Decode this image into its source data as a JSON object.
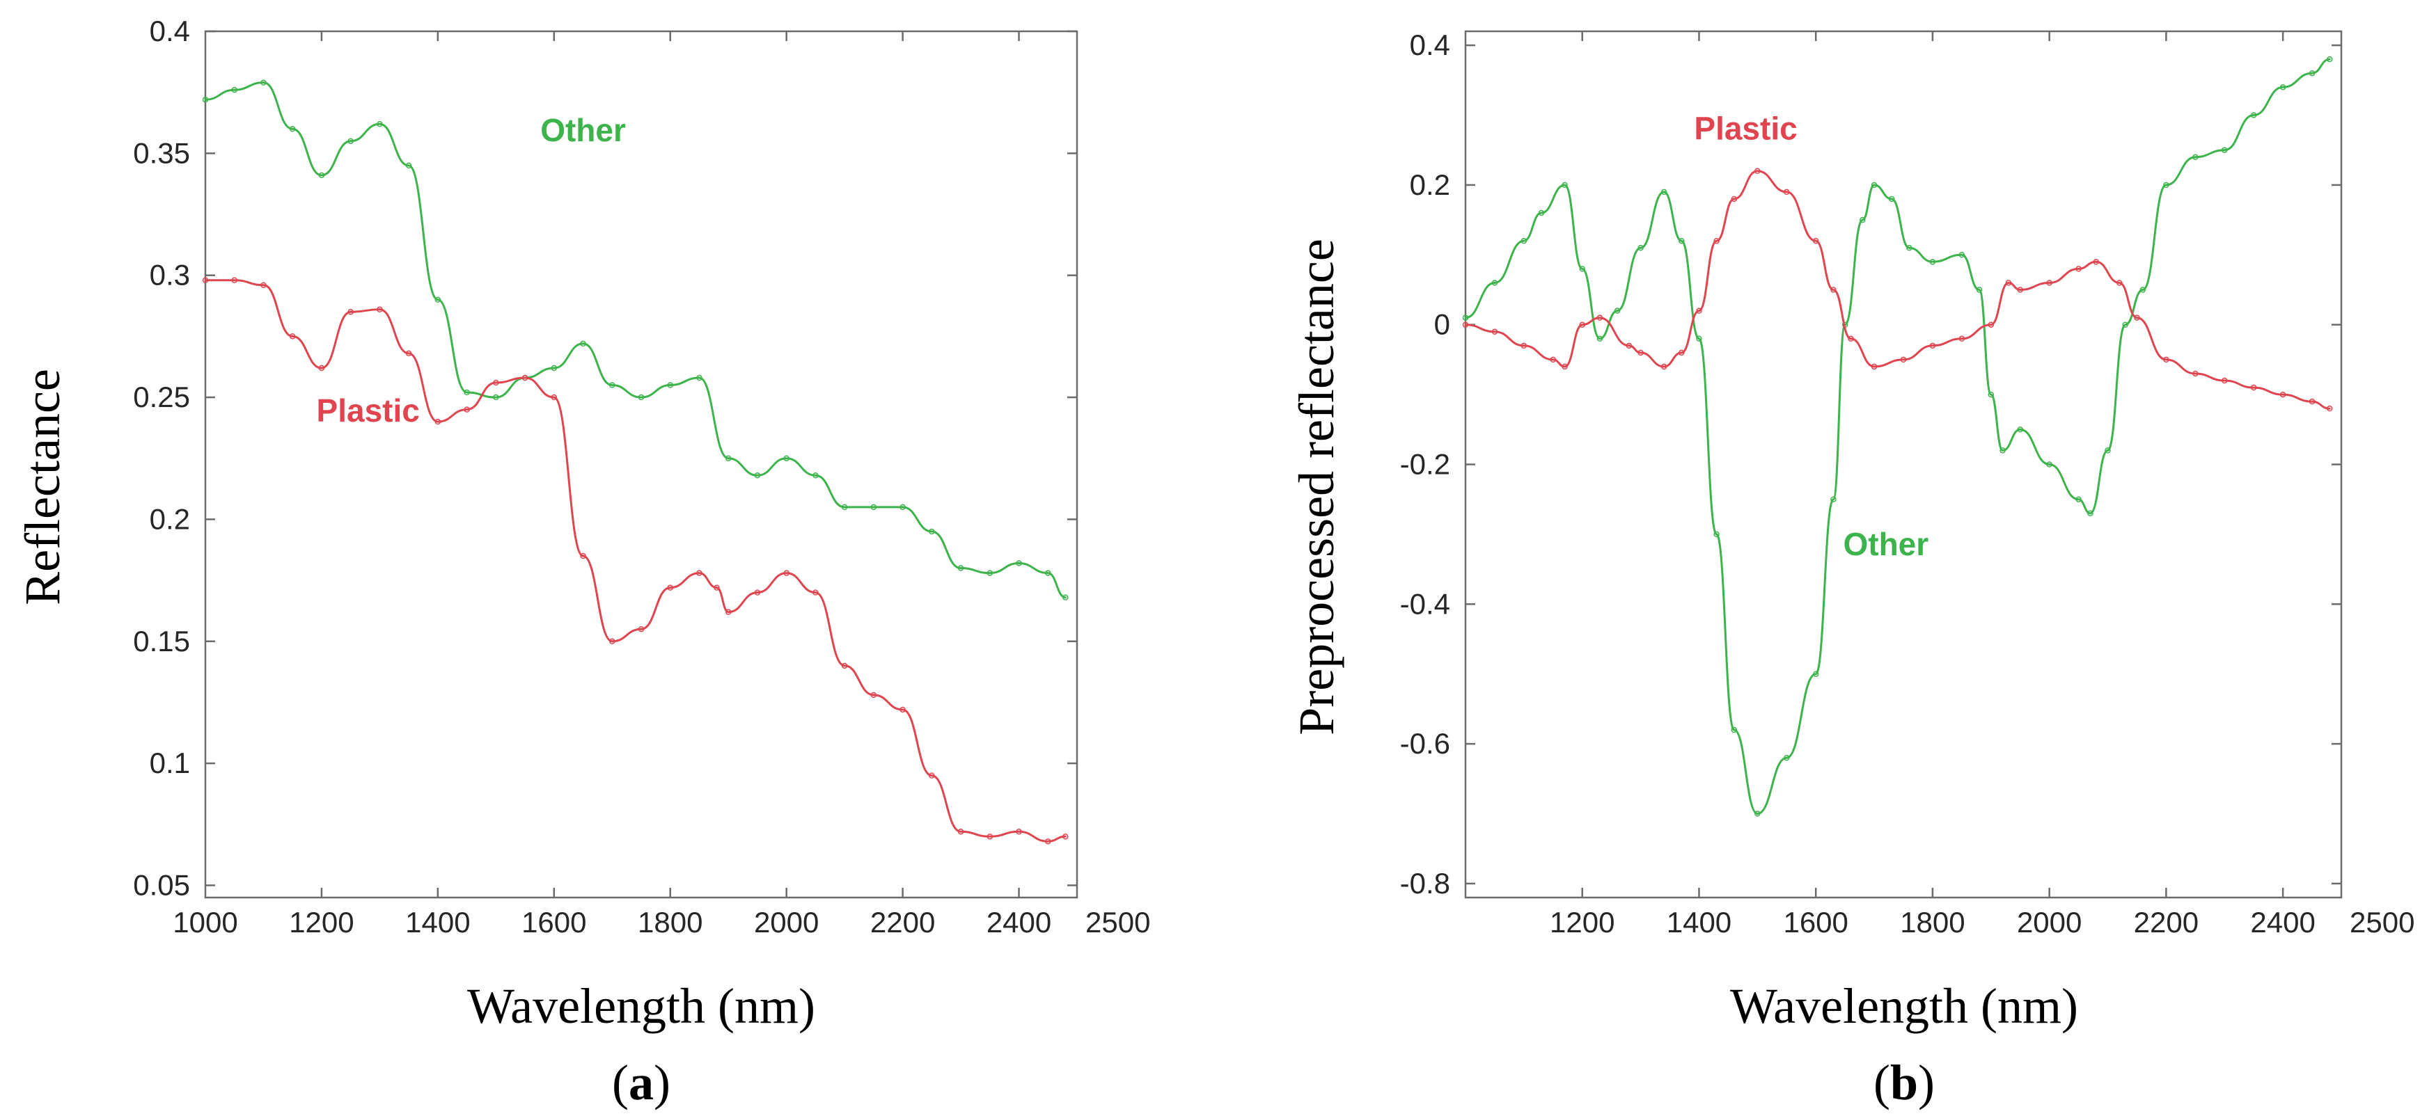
{
  "chart_data": [
    {
      "panel": "(a)",
      "panel_letter": "a",
      "type": "line",
      "title": "",
      "xlabel": "Wavelength (nm)",
      "ylabel": "Reflectance",
      "xlim": [
        1000,
        2500
      ],
      "ylim": [
        0.045,
        0.4
      ],
      "xticks": [
        1000,
        1200,
        1400,
        1600,
        1800,
        2000,
        2200,
        2400,
        2500
      ],
      "xtick_labels": [
        "1000",
        "1200",
        "1400",
        "1600",
        "1800",
        "2000",
        "2200",
        "2400",
        "2500"
      ],
      "yticks": [
        0.05,
        0.1,
        0.15,
        0.2,
        0.25,
        0.3,
        0.35,
        0.4
      ],
      "ytick_labels": [
        "0.05",
        "0.1",
        "0.15",
        "0.2",
        "0.25",
        "0.3",
        "0.35",
        "0.4"
      ],
      "series": [
        {
          "name": "Other",
          "label": "Other",
          "color": "#3cb44b",
          "label_pos": [
            1650,
            0.355
          ],
          "x": [
            1000,
            1050,
            1100,
            1150,
            1200,
            1250,
            1300,
            1350,
            1400,
            1450,
            1500,
            1550,
            1600,
            1650,
            1700,
            1750,
            1800,
            1850,
            1900,
            1950,
            2000,
            2050,
            2100,
            2150,
            2200,
            2250,
            2300,
            2350,
            2400,
            2450,
            2480
          ],
          "y": [
            0.372,
            0.376,
            0.379,
            0.36,
            0.341,
            0.355,
            0.362,
            0.345,
            0.29,
            0.252,
            0.25,
            0.258,
            0.262,
            0.272,
            0.255,
            0.25,
            0.255,
            0.258,
            0.225,
            0.218,
            0.225,
            0.218,
            0.205,
            0.205,
            0.205,
            0.195,
            0.18,
            0.178,
            0.182,
            0.178,
            0.168
          ]
        },
        {
          "name": "Plastic",
          "label": "Plastic",
          "color": "#e0454f",
          "label_pos": [
            1280,
            0.24
          ],
          "x": [
            1000,
            1050,
            1100,
            1150,
            1200,
            1250,
            1300,
            1350,
            1400,
            1450,
            1500,
            1550,
            1600,
            1650,
            1700,
            1750,
            1800,
            1850,
            1880,
            1900,
            1950,
            2000,
            2050,
            2100,
            2150,
            2200,
            2250,
            2300,
            2350,
            2400,
            2450,
            2480
          ],
          "y": [
            0.298,
            0.298,
            0.296,
            0.275,
            0.262,
            0.285,
            0.286,
            0.268,
            0.24,
            0.245,
            0.256,
            0.258,
            0.25,
            0.185,
            0.15,
            0.155,
            0.172,
            0.178,
            0.172,
            0.162,
            0.17,
            0.178,
            0.17,
            0.14,
            0.128,
            0.122,
            0.095,
            0.072,
            0.07,
            0.072,
            0.068,
            0.07
          ]
        }
      ]
    },
    {
      "panel": "(b)",
      "panel_letter": "b",
      "type": "line",
      "title": "",
      "xlabel": "Wavelength (nm)",
      "ylabel": "Preprocessed reflectance",
      "xlim": [
        1000,
        2500
      ],
      "ylim": [
        -0.82,
        0.42
      ],
      "xticks": [
        1200,
        1400,
        1600,
        1800,
        2000,
        2200,
        2400,
        2500
      ],
      "xtick_labels": [
        "1200",
        "1400",
        "1600",
        "1800",
        "2000",
        "2200",
        "2400",
        "2500"
      ],
      "yticks": [
        -0.8,
        -0.6,
        -0.4,
        -0.2,
        0,
        0.2,
        0.4
      ],
      "ytick_labels": [
        "-0.8",
        "-0.6",
        "-0.4",
        "-0.2",
        "0",
        "0.2",
        "0.4"
      ],
      "series": [
        {
          "name": "Other",
          "label": "Other",
          "color": "#3cb44b",
          "label_pos": [
            1720,
            -0.33
          ],
          "x": [
            1000,
            1050,
            1100,
            1130,
            1170,
            1200,
            1230,
            1260,
            1300,
            1340,
            1370,
            1400,
            1430,
            1460,
            1500,
            1550,
            1600,
            1630,
            1650,
            1680,
            1700,
            1730,
            1760,
            1800,
            1850,
            1880,
            1900,
            1920,
            1950,
            2000,
            2050,
            2070,
            2100,
            2130,
            2160,
            2200,
            2250,
            2300,
            2350,
            2400,
            2450,
            2480
          ],
          "y": [
            0.01,
            0.06,
            0.12,
            0.16,
            0.2,
            0.08,
            -0.02,
            0.02,
            0.11,
            0.19,
            0.12,
            -0.02,
            -0.3,
            -0.58,
            -0.7,
            -0.62,
            -0.5,
            -0.25,
            0.0,
            0.15,
            0.2,
            0.18,
            0.11,
            0.09,
            0.1,
            0.05,
            -0.1,
            -0.18,
            -0.15,
            -0.2,
            -0.25,
            -0.27,
            -0.18,
            0.0,
            0.05,
            0.2,
            0.24,
            0.25,
            0.3,
            0.34,
            0.36,
            0.38
          ]
        },
        {
          "name": "Plastic",
          "label": "Plastic",
          "color": "#e0454f",
          "label_pos": [
            1480,
            0.265
          ],
          "x": [
            1000,
            1050,
            1100,
            1150,
            1170,
            1200,
            1230,
            1280,
            1300,
            1340,
            1370,
            1400,
            1430,
            1460,
            1500,
            1550,
            1600,
            1630,
            1660,
            1700,
            1750,
            1800,
            1850,
            1900,
            1930,
            1950,
            2000,
            2050,
            2080,
            2120,
            2150,
            2200,
            2250,
            2300,
            2350,
            2400,
            2450,
            2480
          ],
          "y": [
            0.0,
            -0.01,
            -0.03,
            -0.05,
            -0.06,
            0.0,
            0.01,
            -0.03,
            -0.04,
            -0.06,
            -0.04,
            0.02,
            0.12,
            0.18,
            0.22,
            0.19,
            0.12,
            0.05,
            -0.02,
            -0.06,
            -0.05,
            -0.03,
            -0.02,
            0.0,
            0.06,
            0.05,
            0.06,
            0.08,
            0.09,
            0.06,
            0.01,
            -0.05,
            -0.07,
            -0.08,
            -0.09,
            -0.1,
            -0.11,
            -0.12
          ]
        }
      ]
    }
  ]
}
